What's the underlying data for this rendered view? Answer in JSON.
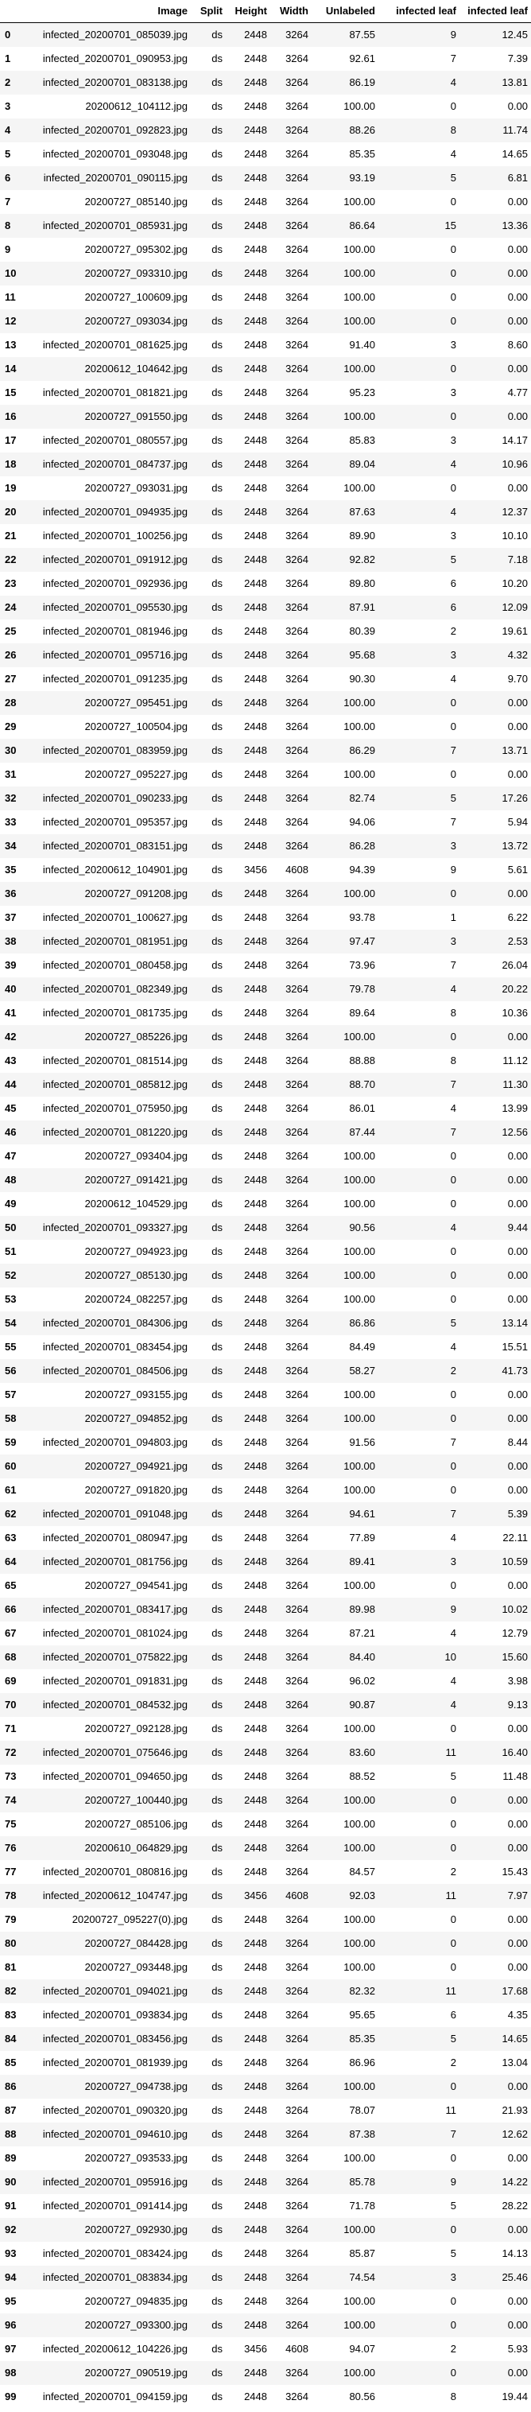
{
  "table": {
    "columns": [
      "",
      "Image",
      "Split",
      "Height",
      "Width",
      "Unlabeled",
      "infected leaf",
      "infected leaf"
    ],
    "rows": [
      [
        "0",
        "infected_20200701_085039.jpg",
        "ds",
        "2448",
        "3264",
        "87.55",
        "9",
        "12.45"
      ],
      [
        "1",
        "infected_20200701_090953.jpg",
        "ds",
        "2448",
        "3264",
        "92.61",
        "7",
        "7.39"
      ],
      [
        "2",
        "infected_20200701_083138.jpg",
        "ds",
        "2448",
        "3264",
        "86.19",
        "4",
        "13.81"
      ],
      [
        "3",
        "20200612_104112.jpg",
        "ds",
        "2448",
        "3264",
        "100.00",
        "0",
        "0.00"
      ],
      [
        "4",
        "infected_20200701_092823.jpg",
        "ds",
        "2448",
        "3264",
        "88.26",
        "8",
        "11.74"
      ],
      [
        "5",
        "infected_20200701_093048.jpg",
        "ds",
        "2448",
        "3264",
        "85.35",
        "4",
        "14.65"
      ],
      [
        "6",
        "infected_20200701_090115.jpg",
        "ds",
        "2448",
        "3264",
        "93.19",
        "5",
        "6.81"
      ],
      [
        "7",
        "20200727_085140.jpg",
        "ds",
        "2448",
        "3264",
        "100.00",
        "0",
        "0.00"
      ],
      [
        "8",
        "infected_20200701_085931.jpg",
        "ds",
        "2448",
        "3264",
        "86.64",
        "15",
        "13.36"
      ],
      [
        "9",
        "20200727_095302.jpg",
        "ds",
        "2448",
        "3264",
        "100.00",
        "0",
        "0.00"
      ],
      [
        "10",
        "20200727_093310.jpg",
        "ds",
        "2448",
        "3264",
        "100.00",
        "0",
        "0.00"
      ],
      [
        "11",
        "20200727_100609.jpg",
        "ds",
        "2448",
        "3264",
        "100.00",
        "0",
        "0.00"
      ],
      [
        "12",
        "20200727_093034.jpg",
        "ds",
        "2448",
        "3264",
        "100.00",
        "0",
        "0.00"
      ],
      [
        "13",
        "infected_20200701_081625.jpg",
        "ds",
        "2448",
        "3264",
        "91.40",
        "3",
        "8.60"
      ],
      [
        "14",
        "20200612_104642.jpg",
        "ds",
        "2448",
        "3264",
        "100.00",
        "0",
        "0.00"
      ],
      [
        "15",
        "infected_20200701_081821.jpg",
        "ds",
        "2448",
        "3264",
        "95.23",
        "3",
        "4.77"
      ],
      [
        "16",
        "20200727_091550.jpg",
        "ds",
        "2448",
        "3264",
        "100.00",
        "0",
        "0.00"
      ],
      [
        "17",
        "infected_20200701_080557.jpg",
        "ds",
        "2448",
        "3264",
        "85.83",
        "3",
        "14.17"
      ],
      [
        "18",
        "infected_20200701_084737.jpg",
        "ds",
        "2448",
        "3264",
        "89.04",
        "4",
        "10.96"
      ],
      [
        "19",
        "20200727_093031.jpg",
        "ds",
        "2448",
        "3264",
        "100.00",
        "0",
        "0.00"
      ],
      [
        "20",
        "infected_20200701_094935.jpg",
        "ds",
        "2448",
        "3264",
        "87.63",
        "4",
        "12.37"
      ],
      [
        "21",
        "infected_20200701_100256.jpg",
        "ds",
        "2448",
        "3264",
        "89.90",
        "3",
        "10.10"
      ],
      [
        "22",
        "infected_20200701_091912.jpg",
        "ds",
        "2448",
        "3264",
        "92.82",
        "5",
        "7.18"
      ],
      [
        "23",
        "infected_20200701_092936.jpg",
        "ds",
        "2448",
        "3264",
        "89.80",
        "6",
        "10.20"
      ],
      [
        "24",
        "infected_20200701_095530.jpg",
        "ds",
        "2448",
        "3264",
        "87.91",
        "6",
        "12.09"
      ],
      [
        "25",
        "infected_20200701_081946.jpg",
        "ds",
        "2448",
        "3264",
        "80.39",
        "2",
        "19.61"
      ],
      [
        "26",
        "infected_20200701_095716.jpg",
        "ds",
        "2448",
        "3264",
        "95.68",
        "3",
        "4.32"
      ],
      [
        "27",
        "infected_20200701_091235.jpg",
        "ds",
        "2448",
        "3264",
        "90.30",
        "4",
        "9.70"
      ],
      [
        "28",
        "20200727_095451.jpg",
        "ds",
        "2448",
        "3264",
        "100.00",
        "0",
        "0.00"
      ],
      [
        "29",
        "20200727_100504.jpg",
        "ds",
        "2448",
        "3264",
        "100.00",
        "0",
        "0.00"
      ],
      [
        "30",
        "infected_20200701_083959.jpg",
        "ds",
        "2448",
        "3264",
        "86.29",
        "7",
        "13.71"
      ],
      [
        "31",
        "20200727_095227.jpg",
        "ds",
        "2448",
        "3264",
        "100.00",
        "0",
        "0.00"
      ],
      [
        "32",
        "infected_20200701_090233.jpg",
        "ds",
        "2448",
        "3264",
        "82.74",
        "5",
        "17.26"
      ],
      [
        "33",
        "infected_20200701_095357.jpg",
        "ds",
        "2448",
        "3264",
        "94.06",
        "7",
        "5.94"
      ],
      [
        "34",
        "infected_20200701_083151.jpg",
        "ds",
        "2448",
        "3264",
        "86.28",
        "3",
        "13.72"
      ],
      [
        "35",
        "infected_20200612_104901.jpg",
        "ds",
        "3456",
        "4608",
        "94.39",
        "9",
        "5.61"
      ],
      [
        "36",
        "20200727_091208.jpg",
        "ds",
        "2448",
        "3264",
        "100.00",
        "0",
        "0.00"
      ],
      [
        "37",
        "infected_20200701_100627.jpg",
        "ds",
        "2448",
        "3264",
        "93.78",
        "1",
        "6.22"
      ],
      [
        "38",
        "infected_20200701_081951.jpg",
        "ds",
        "2448",
        "3264",
        "97.47",
        "3",
        "2.53"
      ],
      [
        "39",
        "infected_20200701_080458.jpg",
        "ds",
        "2448",
        "3264",
        "73.96",
        "7",
        "26.04"
      ],
      [
        "40",
        "infected_20200701_082349.jpg",
        "ds",
        "2448",
        "3264",
        "79.78",
        "4",
        "20.22"
      ],
      [
        "41",
        "infected_20200701_081735.jpg",
        "ds",
        "2448",
        "3264",
        "89.64",
        "8",
        "10.36"
      ],
      [
        "42",
        "20200727_085226.jpg",
        "ds",
        "2448",
        "3264",
        "100.00",
        "0",
        "0.00"
      ],
      [
        "43",
        "infected_20200701_081514.jpg",
        "ds",
        "2448",
        "3264",
        "88.88",
        "8",
        "11.12"
      ],
      [
        "44",
        "infected_20200701_085812.jpg",
        "ds",
        "2448",
        "3264",
        "88.70",
        "7",
        "11.30"
      ],
      [
        "45",
        "infected_20200701_075950.jpg",
        "ds",
        "2448",
        "3264",
        "86.01",
        "4",
        "13.99"
      ],
      [
        "46",
        "infected_20200701_081220.jpg",
        "ds",
        "2448",
        "3264",
        "87.44",
        "7",
        "12.56"
      ],
      [
        "47",
        "20200727_093404.jpg",
        "ds",
        "2448",
        "3264",
        "100.00",
        "0",
        "0.00"
      ],
      [
        "48",
        "20200727_091421.jpg",
        "ds",
        "2448",
        "3264",
        "100.00",
        "0",
        "0.00"
      ],
      [
        "49",
        "20200612_104529.jpg",
        "ds",
        "2448",
        "3264",
        "100.00",
        "0",
        "0.00"
      ],
      [
        "50",
        "infected_20200701_093327.jpg",
        "ds",
        "2448",
        "3264",
        "90.56",
        "4",
        "9.44"
      ],
      [
        "51",
        "20200727_094923.jpg",
        "ds",
        "2448",
        "3264",
        "100.00",
        "0",
        "0.00"
      ],
      [
        "52",
        "20200727_085130.jpg",
        "ds",
        "2448",
        "3264",
        "100.00",
        "0",
        "0.00"
      ],
      [
        "53",
        "20200724_082257.jpg",
        "ds",
        "2448",
        "3264",
        "100.00",
        "0",
        "0.00"
      ],
      [
        "54",
        "infected_20200701_084306.jpg",
        "ds",
        "2448",
        "3264",
        "86.86",
        "5",
        "13.14"
      ],
      [
        "55",
        "infected_20200701_083454.jpg",
        "ds",
        "2448",
        "3264",
        "84.49",
        "4",
        "15.51"
      ],
      [
        "56",
        "infected_20200701_084506.jpg",
        "ds",
        "2448",
        "3264",
        "58.27",
        "2",
        "41.73"
      ],
      [
        "57",
        "20200727_093155.jpg",
        "ds",
        "2448",
        "3264",
        "100.00",
        "0",
        "0.00"
      ],
      [
        "58",
        "20200727_094852.jpg",
        "ds",
        "2448",
        "3264",
        "100.00",
        "0",
        "0.00"
      ],
      [
        "59",
        "infected_20200701_094803.jpg",
        "ds",
        "2448",
        "3264",
        "91.56",
        "7",
        "8.44"
      ],
      [
        "60",
        "20200727_094921.jpg",
        "ds",
        "2448",
        "3264",
        "100.00",
        "0",
        "0.00"
      ],
      [
        "61",
        "20200727_091820.jpg",
        "ds",
        "2448",
        "3264",
        "100.00",
        "0",
        "0.00"
      ],
      [
        "62",
        "infected_20200701_091048.jpg",
        "ds",
        "2448",
        "3264",
        "94.61",
        "7",
        "5.39"
      ],
      [
        "63",
        "infected_20200701_080947.jpg",
        "ds",
        "2448",
        "3264",
        "77.89",
        "4",
        "22.11"
      ],
      [
        "64",
        "infected_20200701_081756.jpg",
        "ds",
        "2448",
        "3264",
        "89.41",
        "3",
        "10.59"
      ],
      [
        "65",
        "20200727_094541.jpg",
        "ds",
        "2448",
        "3264",
        "100.00",
        "0",
        "0.00"
      ],
      [
        "66",
        "infected_20200701_083417.jpg",
        "ds",
        "2448",
        "3264",
        "89.98",
        "9",
        "10.02"
      ],
      [
        "67",
        "infected_20200701_081024.jpg",
        "ds",
        "2448",
        "3264",
        "87.21",
        "4",
        "12.79"
      ],
      [
        "68",
        "infected_20200701_075822.jpg",
        "ds",
        "2448",
        "3264",
        "84.40",
        "10",
        "15.60"
      ],
      [
        "69",
        "infected_20200701_091831.jpg",
        "ds",
        "2448",
        "3264",
        "96.02",
        "4",
        "3.98"
      ],
      [
        "70",
        "infected_20200701_084532.jpg",
        "ds",
        "2448",
        "3264",
        "90.87",
        "4",
        "9.13"
      ],
      [
        "71",
        "20200727_092128.jpg",
        "ds",
        "2448",
        "3264",
        "100.00",
        "0",
        "0.00"
      ],
      [
        "72",
        "infected_20200701_075646.jpg",
        "ds",
        "2448",
        "3264",
        "83.60",
        "11",
        "16.40"
      ],
      [
        "73",
        "infected_20200701_094650.jpg",
        "ds",
        "2448",
        "3264",
        "88.52",
        "5",
        "11.48"
      ],
      [
        "74",
        "20200727_100440.jpg",
        "ds",
        "2448",
        "3264",
        "100.00",
        "0",
        "0.00"
      ],
      [
        "75",
        "20200727_085106.jpg",
        "ds",
        "2448",
        "3264",
        "100.00",
        "0",
        "0.00"
      ],
      [
        "76",
        "20200610_064829.jpg",
        "ds",
        "2448",
        "3264",
        "100.00",
        "0",
        "0.00"
      ],
      [
        "77",
        "infected_20200701_080816.jpg",
        "ds",
        "2448",
        "3264",
        "84.57",
        "2",
        "15.43"
      ],
      [
        "78",
        "infected_20200612_104747.jpg",
        "ds",
        "3456",
        "4608",
        "92.03",
        "11",
        "7.97"
      ],
      [
        "79",
        "20200727_095227(0).jpg",
        "ds",
        "2448",
        "3264",
        "100.00",
        "0",
        "0.00"
      ],
      [
        "80",
        "20200727_084428.jpg",
        "ds",
        "2448",
        "3264",
        "100.00",
        "0",
        "0.00"
      ],
      [
        "81",
        "20200727_093448.jpg",
        "ds",
        "2448",
        "3264",
        "100.00",
        "0",
        "0.00"
      ],
      [
        "82",
        "infected_20200701_094021.jpg",
        "ds",
        "2448",
        "3264",
        "82.32",
        "11",
        "17.68"
      ],
      [
        "83",
        "infected_20200701_093834.jpg",
        "ds",
        "2448",
        "3264",
        "95.65",
        "6",
        "4.35"
      ],
      [
        "84",
        "infected_20200701_083456.jpg",
        "ds",
        "2448",
        "3264",
        "85.35",
        "5",
        "14.65"
      ],
      [
        "85",
        "infected_20200701_081939.jpg",
        "ds",
        "2448",
        "3264",
        "86.96",
        "2",
        "13.04"
      ],
      [
        "86",
        "20200727_094738.jpg",
        "ds",
        "2448",
        "3264",
        "100.00",
        "0",
        "0.00"
      ],
      [
        "87",
        "infected_20200701_090320.jpg",
        "ds",
        "2448",
        "3264",
        "78.07",
        "11",
        "21.93"
      ],
      [
        "88",
        "infected_20200701_094610.jpg",
        "ds",
        "2448",
        "3264",
        "87.38",
        "7",
        "12.62"
      ],
      [
        "89",
        "20200727_093533.jpg",
        "ds",
        "2448",
        "3264",
        "100.00",
        "0",
        "0.00"
      ],
      [
        "90",
        "infected_20200701_095916.jpg",
        "ds",
        "2448",
        "3264",
        "85.78",
        "9",
        "14.22"
      ],
      [
        "91",
        "infected_20200701_091414.jpg",
        "ds",
        "2448",
        "3264",
        "71.78",
        "5",
        "28.22"
      ],
      [
        "92",
        "20200727_092930.jpg",
        "ds",
        "2448",
        "3264",
        "100.00",
        "0",
        "0.00"
      ],
      [
        "93",
        "infected_20200701_083424.jpg",
        "ds",
        "2448",
        "3264",
        "85.87",
        "5",
        "14.13"
      ],
      [
        "94",
        "infected_20200701_083834.jpg",
        "ds",
        "2448",
        "3264",
        "74.54",
        "3",
        "25.46"
      ],
      [
        "95",
        "20200727_094835.jpg",
        "ds",
        "2448",
        "3264",
        "100.00",
        "0",
        "0.00"
      ],
      [
        "96",
        "20200727_093300.jpg",
        "ds",
        "2448",
        "3264",
        "100.00",
        "0",
        "0.00"
      ],
      [
        "97",
        "infected_20200612_104226.jpg",
        "ds",
        "3456",
        "4608",
        "94.07",
        "2",
        "5.93"
      ],
      [
        "98",
        "20200727_090519.jpg",
        "ds",
        "2448",
        "3264",
        "100.00",
        "0",
        "0.00"
      ],
      [
        "99",
        "infected_20200701_094159.jpg",
        "ds",
        "2448",
        "3264",
        "80.56",
        "8",
        "19.44"
      ]
    ]
  }
}
